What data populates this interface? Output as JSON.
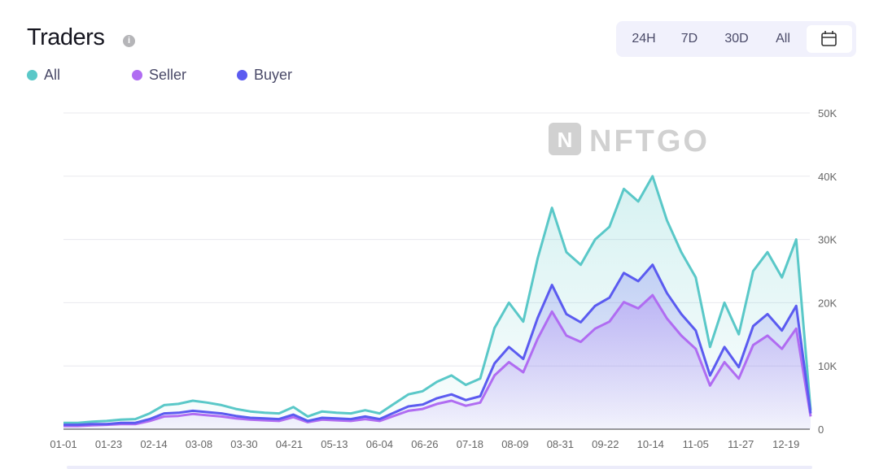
{
  "header": {
    "title": "Traders",
    "info_icon": "info-icon"
  },
  "range_buttons": [
    "24H",
    "7D",
    "30D",
    "All"
  ],
  "calendar_icon": "calendar-icon",
  "watermark": "NFTGO",
  "chart_data": {
    "type": "area",
    "title": "Traders",
    "xlabel": "",
    "ylabel": "",
    "x_ticks": [
      "01-01",
      "01-23",
      "02-14",
      "03-08",
      "03-30",
      "04-21",
      "05-13",
      "06-04",
      "06-26",
      "07-18",
      "08-09",
      "08-31",
      "09-22",
      "10-14",
      "11-05",
      "11-27",
      "12-19"
    ],
    "y_ticks": [
      "0",
      "10K",
      "20K",
      "30K",
      "40K",
      "50K"
    ],
    "ylim": [
      0,
      50000
    ],
    "grid": true,
    "legend_position": "top-left",
    "x_days": [
      0,
      7,
      14,
      21,
      28,
      35,
      42,
      49,
      56,
      63,
      70,
      77,
      84,
      91,
      98,
      105,
      112,
      119,
      126,
      133,
      140,
      147,
      154,
      161,
      168,
      175,
      182,
      189,
      196,
      203,
      210,
      217,
      224,
      231,
      238,
      245,
      252,
      259,
      266,
      273,
      280,
      287,
      294,
      301,
      308,
      315,
      322,
      329,
      336,
      343,
      350,
      357,
      364
    ],
    "series": [
      {
        "name": "All",
        "color": "#5ac8c8",
        "values_k": [
          1.0,
          1.0,
          1.2,
          1.3,
          1.5,
          1.6,
          2.5,
          3.8,
          4.0,
          4.5,
          4.2,
          3.8,
          3.2,
          2.8,
          2.6,
          2.5,
          3.5,
          2.0,
          2.8,
          2.6,
          2.5,
          3.0,
          2.5,
          4.0,
          5.5,
          6.0,
          7.5,
          8.5,
          7.0,
          8.0,
          16.0,
          20.0,
          17.0,
          27.0,
          35.0,
          28.0,
          26.0,
          30.0,
          32.0,
          38.0,
          36.0,
          40.0,
          33.0,
          28.0,
          24.0,
          13.0,
          20.0,
          15.0,
          25.0,
          28.0,
          24.0,
          30.0,
          3.0
        ]
      },
      {
        "name": "Seller",
        "color": "#b06cf2",
        "values_k": [
          0.5,
          0.5,
          0.6,
          0.7,
          0.8,
          0.8,
          1.3,
          2.0,
          2.1,
          2.4,
          2.2,
          2.0,
          1.7,
          1.5,
          1.4,
          1.3,
          1.9,
          1.1,
          1.5,
          1.4,
          1.3,
          1.6,
          1.3,
          2.1,
          2.9,
          3.2,
          4.0,
          4.5,
          3.7,
          4.2,
          8.5,
          10.6,
          9.0,
          14.3,
          18.6,
          14.8,
          13.8,
          15.9,
          17.0,
          20.1,
          19.1,
          21.2,
          17.5,
          14.8,
          12.7,
          6.9,
          10.6,
          8.0,
          13.3,
          14.8,
          12.7,
          15.9,
          2.0
        ]
      },
      {
        "name": "Buyer",
        "color": "#5b5bf0",
        "values_k": [
          0.7,
          0.7,
          0.8,
          0.8,
          1.0,
          1.0,
          1.6,
          2.5,
          2.6,
          2.9,
          2.7,
          2.5,
          2.1,
          1.8,
          1.7,
          1.6,
          2.3,
          1.3,
          1.8,
          1.7,
          1.6,
          2.0,
          1.6,
          2.6,
          3.6,
          3.9,
          4.9,
          5.5,
          4.6,
          5.2,
          10.4,
          13.0,
          11.1,
          17.6,
          22.8,
          18.2,
          16.9,
          19.5,
          20.8,
          24.7,
          23.4,
          26.0,
          21.5,
          18.2,
          15.6,
          8.5,
          13.0,
          9.8,
          16.3,
          18.2,
          15.6,
          19.5,
          2.5
        ]
      }
    ]
  }
}
